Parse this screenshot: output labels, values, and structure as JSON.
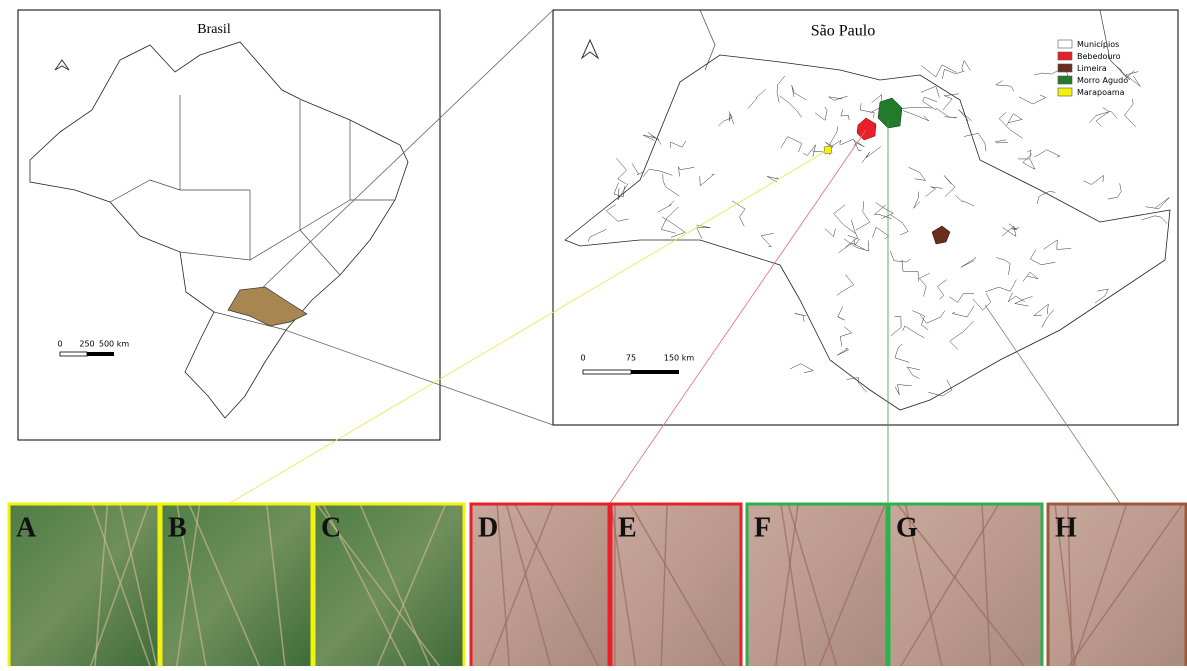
{
  "brazil_map": {
    "title": "Brasil",
    "scale_labels": [
      "0",
      "250",
      "500 km"
    ]
  },
  "sp_map": {
    "title": "São Paulo",
    "scale_labels": [
      "0",
      "75",
      "150 km"
    ],
    "legend": [
      {
        "label": "Municípios",
        "color": "#ffffff"
      },
      {
        "label": "Bebedouro",
        "color": "#e8202a"
      },
      {
        "label": "Limeira",
        "color": "#6b2d1c"
      },
      {
        "label": "Morro Agudo",
        "color": "#237a2a"
      },
      {
        "label": "Marapoama",
        "color": "#f2f20f"
      }
    ]
  },
  "panels": [
    {
      "label": "A",
      "color": "#f2f20f"
    },
    {
      "label": "B",
      "color": "#f2f20f"
    },
    {
      "label": "C",
      "color": "#f2f20f"
    },
    {
      "label": "D",
      "color": "#e8202a"
    },
    {
      "label": "E",
      "color": "#e8202a"
    },
    {
      "label": "F",
      "color": "#2bb24c"
    },
    {
      "label": "G",
      "color": "#2bb24c"
    },
    {
      "label": "H",
      "color": "#9c5a3c"
    }
  ]
}
